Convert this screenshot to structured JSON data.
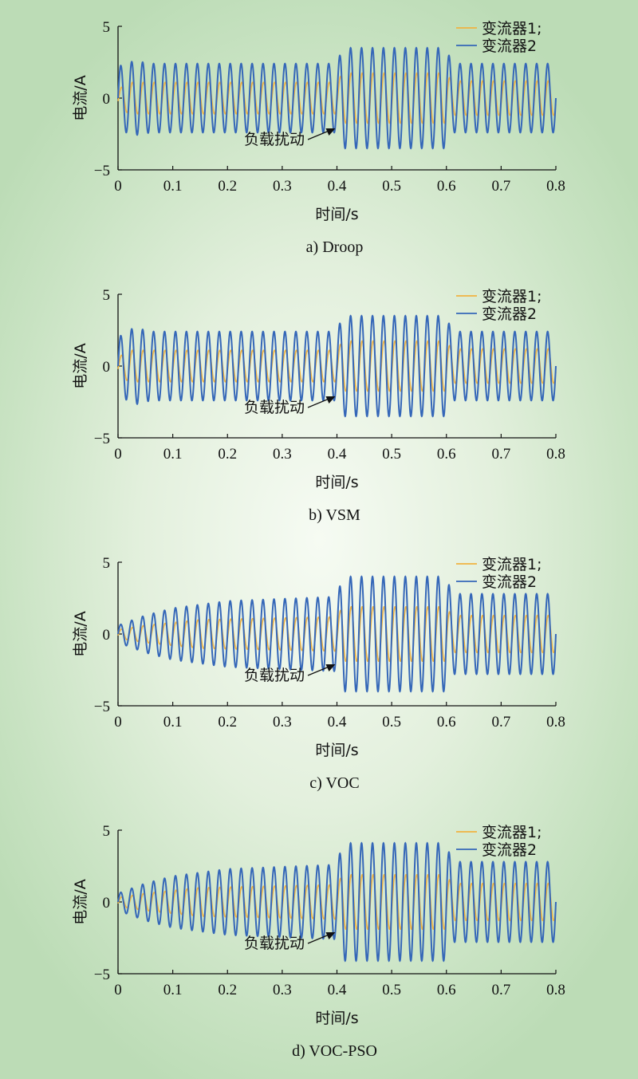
{
  "chart_data": [
    {
      "type": "line",
      "caption": "a) Droop",
      "xlabel": "时间/s",
      "ylabel": "电流/A",
      "xlim": [
        0,
        0.8
      ],
      "ylim": [
        -5,
        5
      ],
      "xticks": [
        "0",
        "0.1",
        "0.2",
        "0.3",
        "0.4",
        "0.5",
        "0.6",
        "0.7",
        "0.8"
      ],
      "yticks": [
        "5",
        "0",
        "−5"
      ],
      "legend_position": "top-right",
      "annotation": {
        "text": "负载扰动",
        "x": 0.4
      },
      "frequency_hz": 50,
      "series": [
        {
          "name": "变流器1;",
          "color": "#f0b341",
          "amplitude": [
            [
              0,
              0.6
            ],
            [
              0.02,
              1.1
            ],
            [
              0.4,
              1.1
            ],
            [
              0.41,
              1.75
            ],
            [
              0.6,
              1.75
            ],
            [
              0.61,
              1.2
            ],
            [
              0.8,
              1.2
            ]
          ]
        },
        {
          "name": "变流器2",
          "color": "#3567b8",
          "amplitude": [
            [
              0,
              2.2
            ],
            [
              0.03,
              2.6
            ],
            [
              0.06,
              2.4
            ],
            [
              0.4,
              2.4
            ],
            [
              0.41,
              3.5
            ],
            [
              0.6,
              3.5
            ],
            [
              0.61,
              2.4
            ],
            [
              0.8,
              2.4
            ]
          ]
        }
      ]
    },
    {
      "type": "line",
      "caption": "b) VSM",
      "xlabel": "时间/s",
      "ylabel": "电流/A",
      "xlim": [
        0,
        0.8
      ],
      "ylim": [
        -5,
        5
      ],
      "xticks": [
        "0",
        "0.1",
        "0.2",
        "0.3",
        "0.4",
        "0.5",
        "0.6",
        "0.7",
        "0.8"
      ],
      "yticks": [
        "5",
        "0",
        "−5"
      ],
      "legend_position": "top-right",
      "annotation": {
        "text": "负载扰动",
        "x": 0.4
      },
      "frequency_hz": 50,
      "series": [
        {
          "name": "变流器1;",
          "color": "#f0b341",
          "amplitude": [
            [
              0,
              0.6
            ],
            [
              0.02,
              1.1
            ],
            [
              0.4,
              1.1
            ],
            [
              0.41,
              1.75
            ],
            [
              0.6,
              1.75
            ],
            [
              0.61,
              1.2
            ],
            [
              0.8,
              1.2
            ]
          ]
        },
        {
          "name": "变流器2",
          "color": "#3567b8",
          "amplitude": [
            [
              0,
              2.0
            ],
            [
              0.03,
              2.7
            ],
            [
              0.06,
              2.4
            ],
            [
              0.4,
              2.4
            ],
            [
              0.41,
              3.5
            ],
            [
              0.6,
              3.5
            ],
            [
              0.61,
              2.4
            ],
            [
              0.8,
              2.4
            ]
          ]
        }
      ]
    },
    {
      "type": "line",
      "caption": "c) VOC",
      "xlabel": "时间/s",
      "ylabel": "电流/A",
      "xlim": [
        0,
        0.8
      ],
      "ylim": [
        -5,
        5
      ],
      "xticks": [
        "0",
        "0.1",
        "0.2",
        "0.3",
        "0.4",
        "0.5",
        "0.6",
        "0.7",
        "0.8"
      ],
      "yticks": [
        "5",
        "0",
        "−5"
      ],
      "legend_position": "top-right",
      "annotation": {
        "text": "负载扰动",
        "x": 0.4
      },
      "frequency_hz": 50,
      "series": [
        {
          "name": "变流器1;",
          "color": "#f0b341",
          "amplitude": [
            [
              0,
              0.3
            ],
            [
              0.05,
              0.6
            ],
            [
              0.15,
              1.0
            ],
            [
              0.4,
              1.2
            ],
            [
              0.41,
              1.9
            ],
            [
              0.6,
              1.9
            ],
            [
              0.61,
              1.3
            ],
            [
              0.8,
              1.3
            ]
          ]
        },
        {
          "name": "变流器2",
          "color": "#3567b8",
          "amplitude": [
            [
              0,
              0.6
            ],
            [
              0.05,
              1.3
            ],
            [
              0.1,
              1.8
            ],
            [
              0.2,
              2.3
            ],
            [
              0.4,
              2.6
            ],
            [
              0.41,
              4.0
            ],
            [
              0.6,
              4.0
            ],
            [
              0.61,
              2.8
            ],
            [
              0.8,
              2.8
            ]
          ]
        }
      ]
    },
    {
      "type": "line",
      "caption": "d) VOC-PSO",
      "xlabel": "时间/s",
      "ylabel": "电流/A",
      "xlim": [
        0,
        0.8
      ],
      "ylim": [
        -5,
        5
      ],
      "xticks": [
        "0",
        "0.1",
        "0.2",
        "0.3",
        "0.4",
        "0.5",
        "0.6",
        "0.7",
        "0.8"
      ],
      "yticks": [
        "5",
        "0",
        "−5"
      ],
      "legend_position": "top-right",
      "annotation": {
        "text": "负载扰动",
        "x": 0.4
      },
      "frequency_hz": 50,
      "series": [
        {
          "name": "变流器1;",
          "color": "#f0b341",
          "amplitude": [
            [
              0,
              0.3
            ],
            [
              0.05,
              0.6
            ],
            [
              0.15,
              1.0
            ],
            [
              0.4,
              1.2
            ],
            [
              0.41,
              1.9
            ],
            [
              0.6,
              1.9
            ],
            [
              0.61,
              1.3
            ],
            [
              0.8,
              1.3
            ]
          ]
        },
        {
          "name": "变流器2",
          "color": "#3567b8",
          "amplitude": [
            [
              0,
              0.6
            ],
            [
              0.05,
              1.3
            ],
            [
              0.1,
              1.8
            ],
            [
              0.2,
              2.3
            ],
            [
              0.4,
              2.6
            ],
            [
              0.41,
              4.1
            ],
            [
              0.6,
              4.1
            ],
            [
              0.61,
              2.8
            ],
            [
              0.8,
              2.8
            ]
          ]
        }
      ]
    }
  ]
}
